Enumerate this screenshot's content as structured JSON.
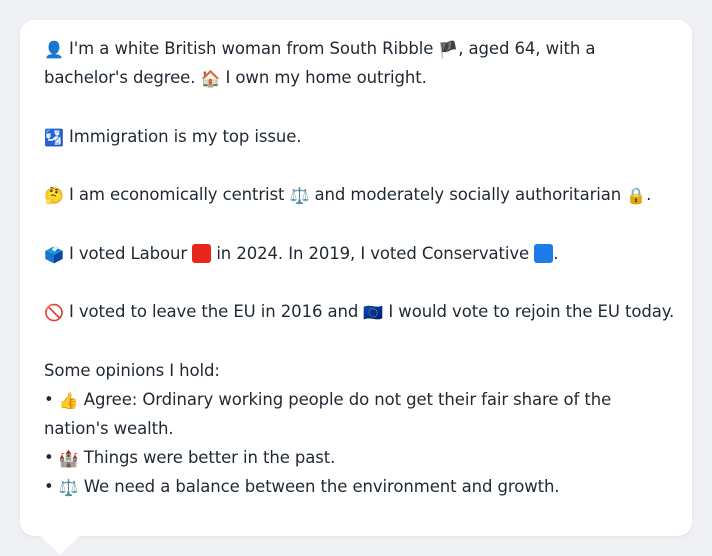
{
  "persona": {
    "intro": {
      "icon": "👤",
      "line1": "I'm a white British woman from South Ribble",
      "flag": "🏴",
      "line1_end": ", aged 64, with a",
      "line2": "bachelor's degree.",
      "home_icon": "🏠",
      "line2_end": "I own my home outright."
    },
    "issue": {
      "icon": "🛂",
      "text": "Immigration is my top issue."
    },
    "ideology": {
      "icon": "🤔",
      "text_a": "I am economically centrist",
      "scale_icon": "⚖️",
      "text_b": "and moderately socially authoritarian",
      "lock_icon": "🔒",
      "text_c": "."
    },
    "votes": {
      "icon": "🗳️",
      "text_a": "I voted Labour",
      "labour_color": "#e8261c",
      "text_b": "in 2024. In 2019, I voted Conservative",
      "conservative_color": "#1e7bea",
      "text_c": "."
    },
    "eu": {
      "icon": "🚫",
      "text_a": "I voted to leave the EU in 2016 and",
      "eu_icon": "🇪🇺",
      "text_b": "I would vote to rejoin the EU today."
    },
    "opinions": {
      "heading": "Some opinions I hold:",
      "bullet": "•",
      "items": [
        {
          "icon": "👍",
          "text_line1": "Agree: Ordinary working people do not get their fair share of the",
          "text_line2": "nation's wealth."
        },
        {
          "icon": "🏰",
          "text_line1": "Things were better in the past."
        },
        {
          "icon": "⚖️",
          "text_line1": "We need a balance between the environment and growth."
        }
      ]
    }
  }
}
